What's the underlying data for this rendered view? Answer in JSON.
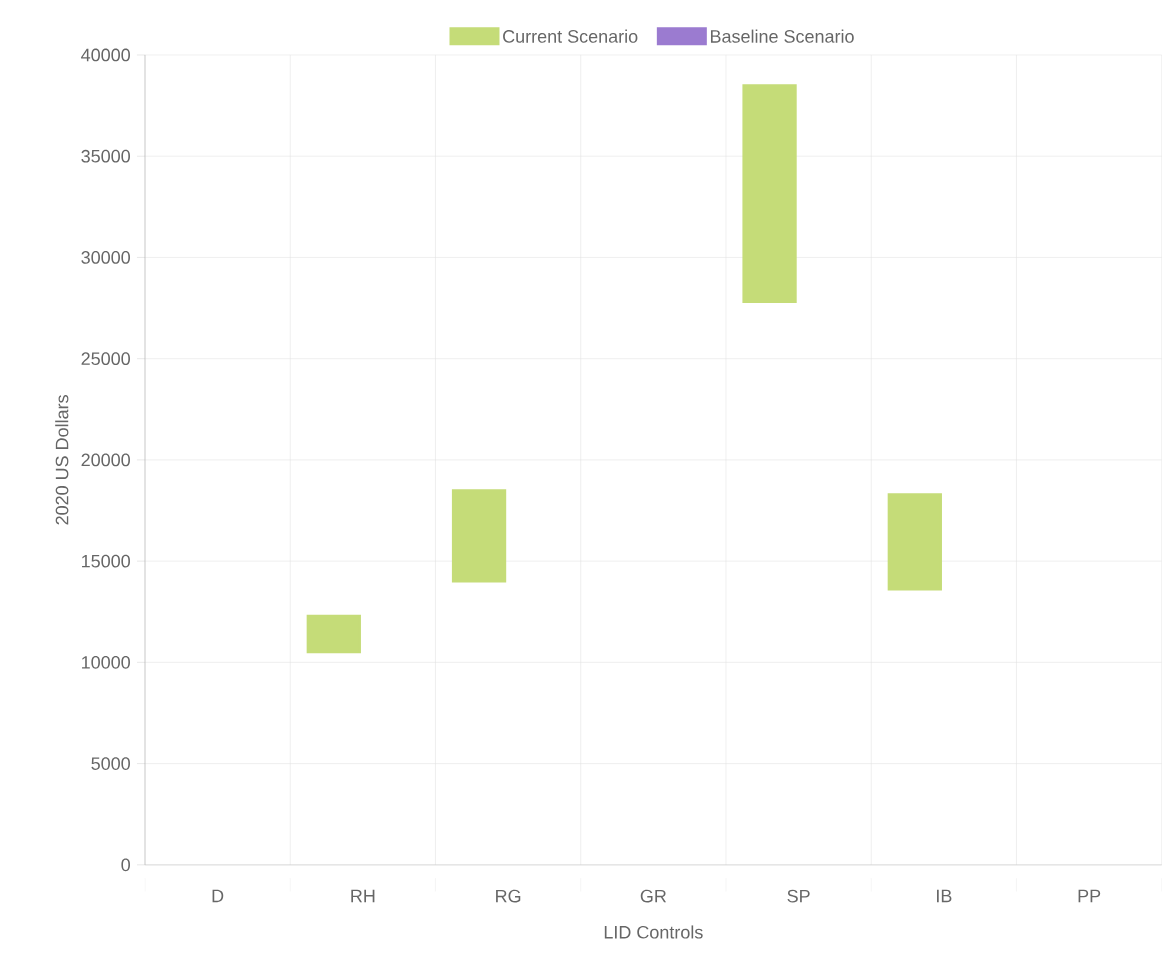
{
  "chart_data": {
    "type": "bar",
    "xlabel": "LID Controls",
    "ylabel": "2020 US Dollars",
    "categories": [
      "D",
      "RH",
      "RG",
      "GR",
      "SP",
      "IB",
      "PP"
    ],
    "series": [
      {
        "name": "Current Scenario",
        "color": "#c5dc78",
        "values": [
          null,
          1800,
          4500,
          null,
          10700,
          4700,
          null
        ],
        "base": [
          null,
          10500,
          14000,
          null,
          27800,
          13600,
          null
        ]
      },
      {
        "name": "Baseline Scenario",
        "color": "#9b7bd0",
        "values": [
          null,
          null,
          null,
          null,
          null,
          null,
          null
        ]
      }
    ],
    "ylim": [
      0,
      40000
    ],
    "yticks": [
      0,
      5000,
      10000,
      15000,
      20000,
      25000,
      30000,
      35000,
      40000
    ],
    "grid": true,
    "legend": "top"
  }
}
